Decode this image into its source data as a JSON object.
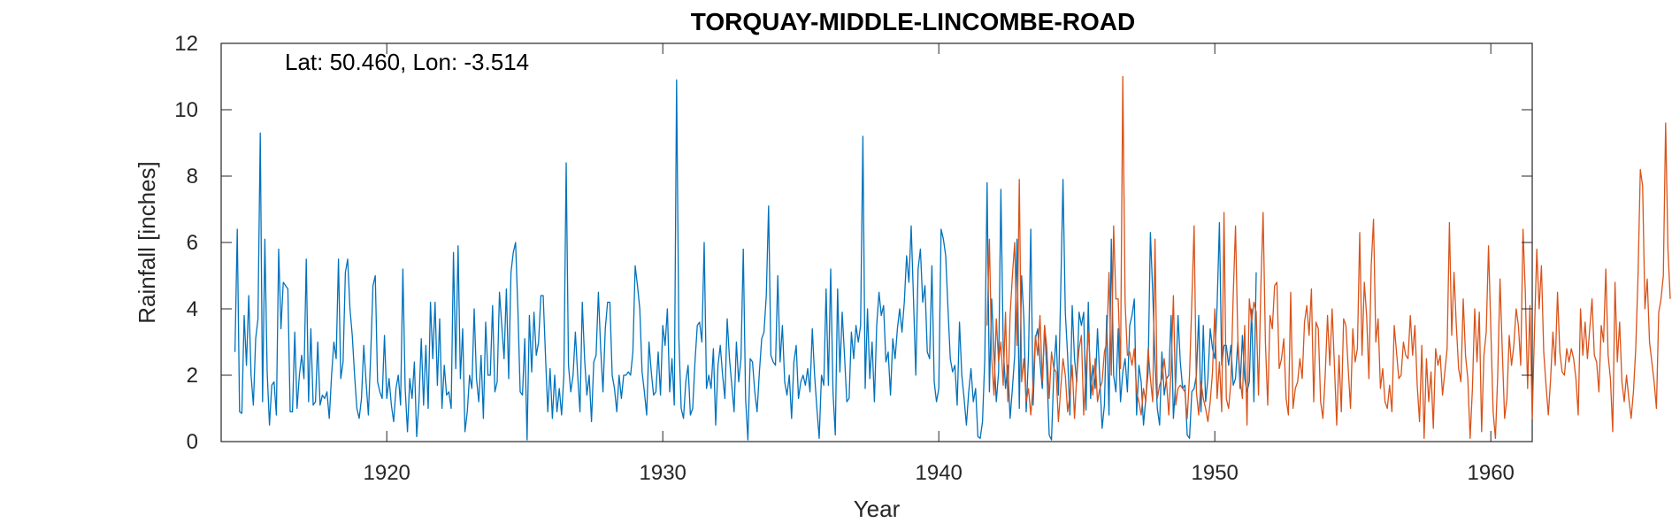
{
  "chart_data": {
    "type": "line",
    "title": "TORQUAY-MIDDLE-LINCOMBE-ROAD",
    "annotation": "Lat: 50.460, Lon: -3.514",
    "xlabel": "Year",
    "ylabel": "Rainfall [inches]",
    "xlim": [
      1914.0,
      1961.5
    ],
    "ylim": [
      0,
      12
    ],
    "xticks": [
      1920,
      1930,
      1940,
      1950,
      1960
    ],
    "yticks": [
      0,
      2,
      4,
      6,
      8,
      10,
      12
    ],
    "grid": false,
    "series": [
      {
        "color": "#0072BD",
        "x_start": 1914.5,
        "step": 0.0833333,
        "values": [
          2.7,
          6.4,
          0.9,
          0.85,
          3.8,
          2.3,
          4.4,
          2.0,
          1.1,
          3.1,
          3.7,
          9.3,
          1.2,
          6.1,
          2.1,
          0.5,
          1.7,
          1.8,
          0.8,
          5.8,
          3.4,
          4.8,
          4.7,
          4.6,
          0.9,
          0.9,
          3.3,
          1.0,
          2.0,
          2.6,
          1.9,
          5.5,
          1.2,
          3.4,
          1.1,
          1.2,
          3.0,
          1.1,
          1.4,
          1.3,
          1.5,
          0.7,
          2.0,
          3.0,
          2.5,
          5.5,
          1.9,
          2.4,
          5.1,
          5.5,
          4.0,
          3.2,
          2.0,
          1.0,
          0.7,
          1.3,
          2.9,
          1.8,
          0.8,
          2.6,
          4.7,
          5.0,
          1.8,
          1.5,
          1.3,
          3.2,
          1.3,
          1.9,
          1.1,
          0.6,
          1.6,
          2.0,
          1.1,
          5.2,
          1.6,
          0.3,
          1.9,
          1.3,
          2.4,
          0.15,
          1.2,
          3.1,
          1.1,
          2.9,
          1.0,
          4.2,
          2.5,
          4.2,
          1.7,
          3.7,
          1.0,
          2.3,
          1.4,
          1.5,
          1.0,
          5.7,
          2.2,
          5.9,
          1.9,
          3.4,
          0.3,
          0.9,
          2.0,
          1.6,
          4.0,
          1.9,
          1.2,
          2.6,
          0.7,
          3.6,
          2.0,
          2.0,
          4.1,
          1.5,
          1.8,
          4.5,
          3.5,
          2.5,
          4.6,
          1.9,
          5.1,
          5.7,
          6.0,
          4.0,
          1.5,
          1.4,
          3.1,
          0.05,
          3.8,
          2.1,
          3.9,
          2.6,
          3.0,
          4.4,
          4.4,
          2.6,
          0.9,
          2.2,
          0.7,
          2.0,
          0.9,
          1.6,
          0.8,
          2.0,
          8.4,
          2.3,
          1.5,
          2.0,
          3.3,
          2.0,
          0.9,
          4.2,
          2.5,
          1.4,
          2.0,
          0.6,
          2.4,
          2.6,
          4.5,
          2.8,
          1.5,
          3.4,
          4.2,
          4.2,
          2.0,
          1.6,
          0.9,
          2.0,
          1.3,
          2.0,
          2.0,
          2.1,
          2.0,
          2.7,
          5.3,
          4.7,
          4.0,
          2.1,
          1.5,
          0.8,
          3.0,
          2.1,
          1.4,
          1.5,
          2.7,
          1.4,
          3.5,
          2.9,
          4.0,
          1.5,
          2.5,
          1.1,
          10.9,
          3.1,
          1.0,
          0.7,
          1.8,
          2.3,
          0.8,
          1.0,
          2.4,
          3.5,
          3.6,
          3.0,
          6.0,
          1.6,
          2.0,
          1.6,
          2.8,
          0.5,
          2.3,
          2.9,
          2.0,
          1.3,
          3.7,
          2.5,
          1.7,
          0.9,
          3.0,
          1.8,
          2.5,
          5.8,
          1.3,
          0.05,
          2.5,
          2.4,
          1.5,
          0.9,
          2.1,
          3.1,
          3.3,
          4.4,
          7.1,
          2.6,
          2.4,
          2.3,
          5.0,
          2.4,
          3.5,
          1.8,
          1.4,
          2.0,
          0.7,
          2.4,
          2.9,
          1.3,
          1.8,
          2.0,
          1.7,
          2.2,
          1.5,
          3.4,
          2.0,
          1.0,
          0.1,
          2.0,
          1.7,
          4.6,
          1.7,
          5.2,
          1.5,
          0.2,
          4.6,
          2.1,
          3.9,
          2.6,
          1.2,
          1.3,
          3.3,
          2.5,
          3.5,
          3.0,
          3.5,
          9.2,
          1.6,
          4.0,
          1.9,
          3.0,
          1.2,
          3.5,
          4.5,
          3.8,
          4.1,
          2.4,
          2.7,
          1.4,
          3.1,
          2.5,
          3.4,
          4.0,
          3.3,
          4.2,
          5.6,
          4.8,
          6.5,
          4.3,
          2.0,
          5.2,
          5.8,
          4.2,
          4.7,
          2.7,
          2.5,
          5.3,
          1.8,
          1.2,
          1.6,
          6.4,
          6.1,
          5.6,
          4.0,
          2.5,
          2.1,
          2.3,
          1.1,
          3.6,
          2.0,
          1.3,
          0.5,
          1.5,
          2.2,
          1.2,
          1.6,
          0.15,
          0.1,
          0.6,
          2.5,
          7.8,
          1.5,
          4.3,
          2.6,
          1.2,
          2.1,
          7.6,
          2.9,
          1.6,
          2.3,
          0.7,
          1.6,
          2.6,
          6.1,
          1.0,
          5.0,
          3.7,
          0.9,
          2.6,
          6.4,
          1.1,
          3.1,
          3.4,
          2.4,
          1.6,
          3.5,
          2.1,
          0.2,
          0.05,
          2.1,
          3.2,
          1.4,
          4.5,
          7.9,
          3.9,
          2.6,
          0.8,
          4.1,
          2.5,
          1.8,
          3.9,
          3.5,
          3.9,
          0.95,
          4.2,
          1.3,
          2.3,
          1.6,
          3.4,
          1.9,
          0.4,
          1.1,
          3.8,
          0.8,
          6.1,
          2.0,
          1.5,
          3.4,
          1.2,
          2.1,
          2.5,
          1.5,
          3.5,
          3.8,
          4.3,
          0.8,
          2.3,
          1.8,
          0.5,
          1.3,
          2.1,
          6.3,
          4.5,
          2.4,
          1.0,
          0.5,
          2.7,
          1.4,
          1.9,
          2.0,
          3.8,
          0.7,
          1.8,
          3.8,
          2.4,
          1.6,
          1.7,
          0.2,
          0.1,
          1.5,
          1.6,
          2.0,
          3.8,
          0.9,
          3.5,
          1.2,
          1.9,
          3.4,
          2.8,
          2.5,
          4.1,
          6.6,
          2.3,
          2.9,
          2.9,
          2.3,
          2.9,
          1.7,
          1.9,
          3.0,
          1.6,
          3.2,
          1.9,
          1.5,
          1.8,
          4.0,
          1.2,
          5.1
        ]
      },
      {
        "color": "#D95319",
        "x_start": 1941.75,
        "step": 0.0833333,
        "values": [
          3.5,
          6.1,
          2.5,
          1.4,
          3.7,
          2.4,
          3.0,
          1.7,
          3.9,
          1.2,
          3.8,
          5.0,
          6.0,
          2.9,
          7.9,
          1.8,
          2.5,
          1.2,
          1.6,
          0.8,
          1.7,
          3.2,
          2.6,
          3.8,
          1.8,
          3.5,
          2.8,
          1.3,
          2.7,
          2.2,
          2.1,
          0.6,
          1.6,
          2.5,
          2.0,
          0.9,
          1.4,
          2.3,
          0.7,
          2.0,
          2.8,
          3.2,
          0.8,
          2.2,
          3.3,
          2.1,
          1.4,
          2.5,
          1.2,
          1.6,
          1.8,
          2.7,
          3.0,
          5.1,
          2.0,
          6.5,
          4.3,
          4.3,
          2.2,
          11.0,
          4.2,
          2.6,
          2.7,
          2.3,
          2.8,
          1.5,
          1.2,
          0.8,
          1.6,
          1.2,
          2.8,
          1.9,
          1.2,
          6.1,
          1.3,
          1.7,
          1.9,
          2.5,
          1.8,
          0.8,
          2.2,
          4.4,
          1.1,
          1.6,
          1.7,
          1.6,
          1.5,
          0.7,
          2.0,
          4.2,
          6.5,
          1.5,
          0.8,
          1.8,
          1.3,
          1.0,
          0.6,
          1.2,
          2.1,
          4.0,
          1.3,
          2.4,
          0.9,
          6.9,
          1.3,
          1.0,
          1.8,
          4.4,
          6.5,
          3.1,
          1.9,
          1.3,
          3.5,
          0.5,
          4.3,
          3.6,
          4.2,
          3.9,
          1.4,
          4.6,
          6.9,
          3.0,
          1.1,
          3.8,
          3.4,
          4.7,
          4.8,
          2.2,
          2.5,
          3.1,
          1.3,
          0.8,
          4.5,
          1.0,
          1.6,
          1.8,
          2.5,
          1.9,
          3.6,
          4.1,
          3.2,
          4.6,
          1.2,
          3.6,
          3.4,
          1.2,
          0.7,
          2.0,
          3.8,
          2.3,
          4.0,
          2.3,
          0.5,
          2.6,
          0.9,
          3.7,
          3.5,
          2.2,
          1.0,
          3.4,
          2.4,
          2.8,
          6.3,
          2.6,
          4.8,
          3.8,
          1.9,
          5.3,
          6.7,
          3.0,
          3.7,
          1.6,
          2.2,
          1.2,
          1.0,
          1.7,
          0.9,
          3.5,
          2.7,
          1.9,
          2.0,
          3.0,
          2.6,
          2.5,
          3.8,
          2.6,
          3.5,
          1.7,
          0.6,
          2.9,
          0.1,
          2.5,
          1.2,
          2.1,
          0.4,
          2.8,
          2.3,
          2.6,
          1.4,
          2.1,
          2.8,
          6.6,
          3.2,
          5.1,
          3.5,
          2.2,
          1.8,
          4.3,
          2.6,
          1.9,
          0.1,
          1.6,
          4.0,
          2.4,
          3.9,
          0.3,
          2.6,
          3.3,
          5.9,
          3.4,
          0.9,
          0.1,
          2.0,
          4.9,
          2.7,
          0.7,
          1.3,
          3.2,
          2.3,
          2.9,
          4.0,
          3.5,
          2.3,
          6.4,
          4.5,
          1.6,
          4.1,
          0.7,
          3.4,
          5.8,
          4.0,
          5.3,
          2.7,
          1.7,
          0.8,
          1.9,
          3.3,
          2.3,
          4.5,
          2.7,
          2.1,
          2.0,
          2.8,
          2.4,
          2.8,
          2.5,
          1.9,
          0.8,
          4.0,
          2.6,
          3.6,
          2.5,
          3.4,
          4.3,
          2.6,
          2.4,
          1.5,
          3.5,
          3.0,
          5.2,
          2.6,
          1.9,
          0.3,
          4.8,
          2.4,
          3.6,
          1.8,
          1.2,
          2.0,
          1.3,
          0.7,
          1.5,
          2.8,
          5.0,
          8.2,
          7.7,
          4.0,
          4.9,
          3.0,
          2.4,
          1.8,
          1.0,
          3.9,
          4.3,
          5.0,
          9.6,
          5.8,
          4.3
        ]
      }
    ]
  }
}
